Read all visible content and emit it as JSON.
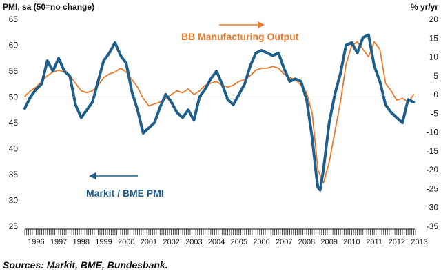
{
  "chart_data": {
    "type": "line",
    "title": "",
    "left_axis_label": "PMI, sa (50=no change)",
    "right_axis_label": "% yr/yr",
    "left_ylim": [
      25,
      65
    ],
    "right_ylim": [
      -35,
      20
    ],
    "left_ticks": [
      25,
      30,
      35,
      40,
      45,
      50,
      55,
      60,
      65
    ],
    "right_ticks": [
      -35,
      -30,
      -25,
      -20,
      -15,
      -10,
      -5,
      0,
      5,
      10,
      15,
      20
    ],
    "x_range": [
      1996,
      2013.3
    ],
    "year_labels": [
      "1996",
      "1997",
      "1998",
      "1999",
      "2000",
      "2001",
      "2002",
      "2003",
      "2004",
      "2005",
      "2006",
      "2007",
      "2008",
      "2009",
      "2010",
      "2011",
      "2012",
      "2013"
    ],
    "reference_line": 50,
    "annotations": [
      {
        "text": "BB Manufacturing Output",
        "series": "output",
        "arrow": "right"
      },
      {
        "text": "Markit / BME PMI",
        "series": "pmi",
        "arrow": "left"
      }
    ],
    "source": "Sources: Markit, BME, Bundesbank.",
    "colors": {
      "pmi": "#1f5f8b",
      "output": "#e8792b",
      "grid": "#333333"
    },
    "series": [
      {
        "name": "Markit / BME PMI",
        "axis": "left",
        "x": [
          1996.0,
          1996.25,
          1996.5,
          1996.75,
          1997.0,
          1997.25,
          1997.5,
          1997.75,
          1998.0,
          1998.25,
          1998.5,
          1998.75,
          1999.0,
          1999.25,
          1999.5,
          1999.75,
          2000.0,
          2000.25,
          2000.5,
          2000.75,
          2001.0,
          2001.25,
          2001.5,
          2001.75,
          2002.0,
          2002.25,
          2002.5,
          2002.75,
          2003.0,
          2003.25,
          2003.5,
          2003.75,
          2004.0,
          2004.25,
          2004.5,
          2004.75,
          2005.0,
          2005.25,
          2005.5,
          2005.75,
          2006.0,
          2006.25,
          2006.5,
          2006.75,
          2007.0,
          2007.25,
          2007.5,
          2007.75,
          2008.0,
          2008.25,
          2008.5,
          2008.75,
          2008.9,
          2009.0,
          2009.1,
          2009.25,
          2009.5,
          2009.75,
          2010.0,
          2010.25,
          2010.5,
          2010.75,
          2011.0,
          2011.25,
          2011.5,
          2011.75,
          2012.0,
          2012.25,
          2012.5,
          2012.75,
          2013.0,
          2013.25
        ],
        "values": [
          47.8,
          50.0,
          51.5,
          52.5,
          57.0,
          55.0,
          57.5,
          55.0,
          54.0,
          48.5,
          46.0,
          47.5,
          49.0,
          53.0,
          57.0,
          58.5,
          60.5,
          58.0,
          56.5,
          51.0,
          47.5,
          43.0,
          44.0,
          45.0,
          48.0,
          50.5,
          49.0,
          47.0,
          46.0,
          47.5,
          45.5,
          50.0,
          51.5,
          53.5,
          55.0,
          52.5,
          49.5,
          48.5,
          50.5,
          52.5,
          56.0,
          58.5,
          59.0,
          58.5,
          58.0,
          58.5,
          55.5,
          53.0,
          53.5,
          53.0,
          49.5,
          42.0,
          36.0,
          32.5,
          32.0,
          36.0,
          45.0,
          50.5,
          54.5,
          60.0,
          60.5,
          58.5,
          61.5,
          62.0,
          56.0,
          53.0,
          48.5,
          47.0,
          46.0,
          45.0,
          49.5,
          49.0
        ]
      },
      {
        "name": "BB Manufacturing Output",
        "axis": "right",
        "x": [
          1996.0,
          1996.25,
          1996.5,
          1996.75,
          1997.0,
          1997.25,
          1997.5,
          1997.75,
          1998.0,
          1998.25,
          1998.5,
          1998.75,
          1999.0,
          1999.25,
          1999.5,
          1999.75,
          2000.0,
          2000.25,
          2000.5,
          2000.75,
          2001.0,
          2001.25,
          2001.5,
          2001.75,
          2002.0,
          2002.25,
          2002.5,
          2002.75,
          2003.0,
          2003.25,
          2003.5,
          2003.75,
          2004.0,
          2004.25,
          2004.5,
          2004.75,
          2005.0,
          2005.25,
          2005.5,
          2005.75,
          2006.0,
          2006.25,
          2006.5,
          2006.75,
          2007.0,
          2007.25,
          2007.5,
          2007.75,
          2008.0,
          2008.25,
          2008.5,
          2008.75,
          2009.0,
          2009.25,
          2009.5,
          2009.75,
          2010.0,
          2010.25,
          2010.5,
          2010.75,
          2011.0,
          2011.25,
          2011.5,
          2011.75,
          2012.0,
          2012.25,
          2012.5,
          2012.75,
          2013.0,
          2013.25
        ],
        "values": [
          -0.5,
          1.0,
          2.0,
          3.5,
          5.0,
          6.0,
          6.5,
          6.0,
          5.0,
          3.0,
          1.0,
          0.5,
          1.0,
          2.5,
          4.5,
          5.5,
          6.0,
          7.0,
          6.0,
          4.0,
          2.0,
          -1.0,
          -3.0,
          -2.5,
          -2.0,
          -1.0,
          0.0,
          1.0,
          0.5,
          1.5,
          0.0,
          1.0,
          2.5,
          3.0,
          3.5,
          2.5,
          2.0,
          2.5,
          3.5,
          4.0,
          5.0,
          6.5,
          7.0,
          7.0,
          7.5,
          7.0,
          5.5,
          4.5,
          4.0,
          2.5,
          0.5,
          -5.0,
          -20.0,
          -23.5,
          -18.0,
          -10.0,
          -2.0,
          8.0,
          13.0,
          14.0,
          12.0,
          10.0,
          14.0,
          12.0,
          3.0,
          1.0,
          -1.5,
          -1.0,
          -2.0,
          0.0
        ]
      }
    ]
  }
}
